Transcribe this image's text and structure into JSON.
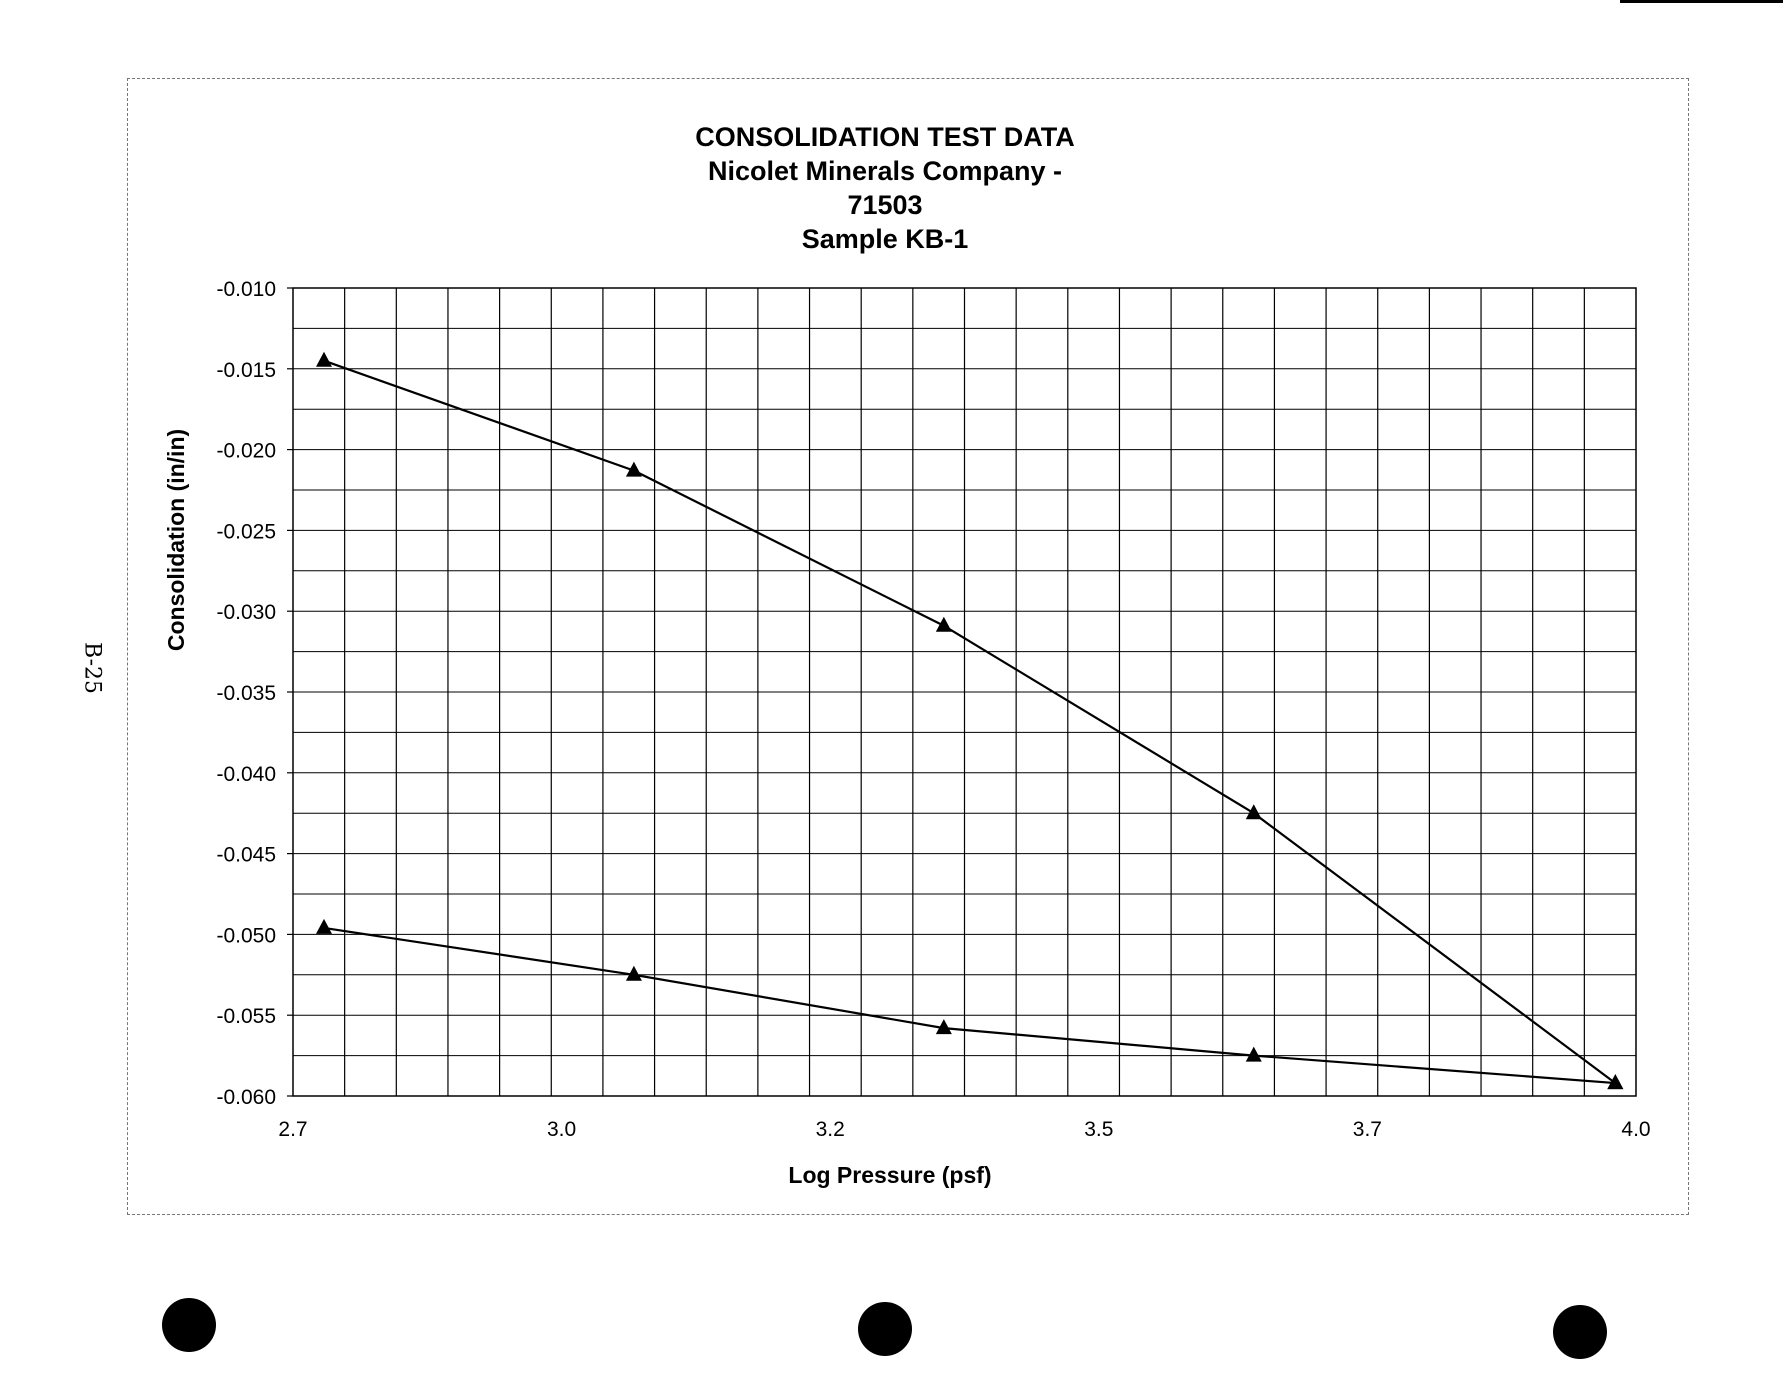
{
  "page": {
    "page_label": "B-25"
  },
  "chart_data": {
    "type": "line",
    "title": "CONSOLIDATION TEST DATA",
    "subtitle_lines": [
      "Nicolet Minerals Company -",
      "71503",
      "Sample KB-1"
    ],
    "xlabel": "Log Pressure (psf)",
    "ylabel": "Consolidation (in/in)",
    "xlim": [
      2.7,
      4.0
    ],
    "ylim": [
      -0.06,
      -0.01
    ],
    "x_tick_labels": [
      "2.7",
      "3.0",
      "3.2",
      "3.5",
      "3.7",
      "4.0"
    ],
    "y_tick_labels": [
      "-0.010",
      "-0.015",
      "-0.020",
      "-0.025",
      "-0.030",
      "-0.035",
      "-0.040",
      "-0.045",
      "-0.050",
      "-0.055",
      "-0.060"
    ],
    "grid": true,
    "marker": "triangle",
    "series": [
      {
        "x": [
          2.73,
          3.03,
          3.33,
          3.63,
          3.98
        ],
        "y": [
          -0.0145,
          -0.0213,
          -0.0309,
          -0.0425,
          -0.0592
        ]
      },
      {
        "x": [
          2.73,
          3.03,
          3.33,
          3.63,
          3.98
        ],
        "y": [
          -0.0496,
          -0.0525,
          -0.0558,
          -0.0575,
          -0.0592
        ]
      }
    ]
  }
}
